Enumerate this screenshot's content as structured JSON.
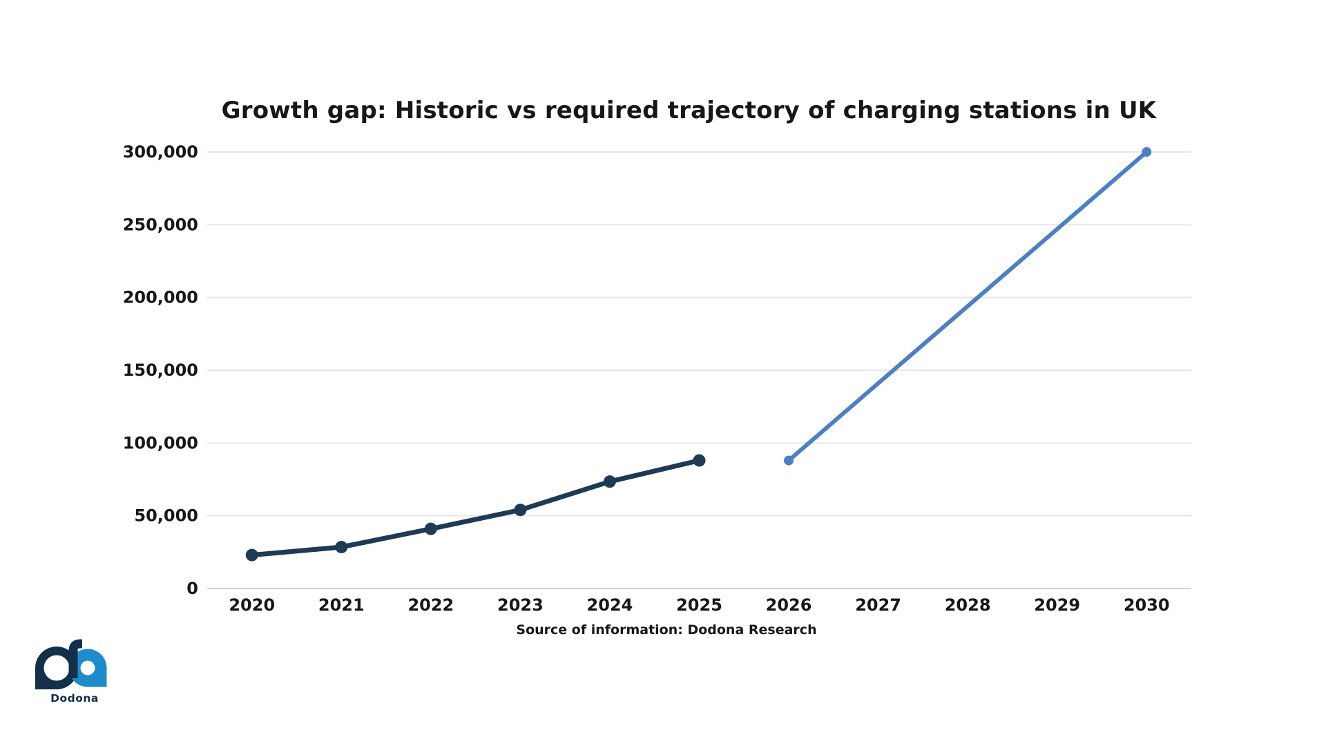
{
  "title": "Growth gap: Historic vs required trajectory of charging stations in UK",
  "source_note": "Source of information: Dodona Research",
  "logo": {
    "text": "Dodona",
    "navy": "#132f4a",
    "blue": "#1e8bca"
  },
  "colors": {
    "historic_line": "#1e3a54",
    "required_line": "#4d80c3",
    "gridline": "#e8e8e8",
    "axis_line": "#cdcdcd",
    "text": "#17171a"
  },
  "chart_data": {
    "type": "line",
    "title": "Growth gap: Historic vs required trajectory of charging stations in UK",
    "source": "Source of information: Dodona Research",
    "categories": [
      "2020",
      "2021",
      "2022",
      "2023",
      "2024",
      "2025",
      "2026",
      "2027",
      "2028",
      "2029",
      "2030"
    ],
    "series": [
      {
        "name": "Historic",
        "color": "#1e3a54",
        "line_width": 7,
        "marker_radius": 9,
        "points": [
          {
            "x": "2020",
            "y": 23000
          },
          {
            "x": "2021",
            "y": 28500
          },
          {
            "x": "2022",
            "y": 41000
          },
          {
            "x": "2023",
            "y": 54000
          },
          {
            "x": "2024",
            "y": 73500
          },
          {
            "x": "2025",
            "y": 88000
          }
        ]
      },
      {
        "name": "Required trajectory",
        "color": "#4d80c3",
        "line_width": 6,
        "marker_radius": 7,
        "points": [
          {
            "x": "2026",
            "y": 88000
          },
          {
            "x": "2030",
            "y": 300000
          }
        ]
      }
    ],
    "ylim": [
      0,
      300000
    ],
    "yticks": [
      {
        "value": 0,
        "label": "0"
      },
      {
        "value": 50000,
        "label": "50,000"
      },
      {
        "value": 100000,
        "label": "100,000"
      },
      {
        "value": 150000,
        "label": "150,000"
      },
      {
        "value": 200000,
        "label": "200,000"
      },
      {
        "value": 250000,
        "label": "250,000"
      },
      {
        "value": 300000,
        "label": "300,000"
      }
    ],
    "grid": "horizontal",
    "legend": "none"
  }
}
